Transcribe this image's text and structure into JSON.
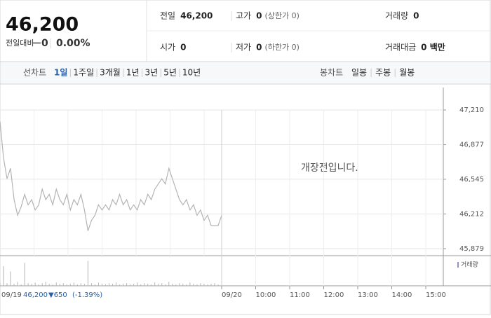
{
  "quote": {
    "price": "46,200",
    "change_label": "전일대비",
    "change": "0",
    "rate": "0.00%"
  },
  "stats": [
    {
      "label": "전일",
      "value": "46,200"
    },
    {
      "label": "고가",
      "value": "0",
      "note": "(상한가 0)"
    },
    {
      "label": "거래량",
      "value": "0"
    },
    {
      "label": "시가",
      "value": "0"
    },
    {
      "label": "저가",
      "value": "0",
      "note": "(하한가 0)"
    },
    {
      "label": "거래대금",
      "value": "0 백만"
    }
  ],
  "tabs": {
    "line_label": "선차트",
    "periods": [
      "1일",
      "1주일",
      "3개월",
      "1년",
      "3년",
      "5년",
      "10년"
    ],
    "candle_label": "봉차트",
    "candles": [
      "일봉",
      "주봉",
      "월봉"
    ]
  },
  "chart": {
    "type": "line",
    "message": "개장전입니다.",
    "color": "#b4b4b4",
    "values": [
      47100,
      46750,
      46550,
      46650,
      46350,
      46200,
      46280,
      46400,
      46300,
      46350,
      46250,
      46300,
      46450,
      46350,
      46400,
      46300,
      46450,
      46350,
      46300,
      46400,
      46250,
      46350,
      46300,
      46400,
      46250,
      46050,
      46150,
      46200,
      46300,
      46250,
      46300,
      46250,
      46350,
      46300,
      46400,
      46300,
      46350,
      46250,
      46300,
      46250,
      46350,
      46300,
      46400,
      46350,
      46450,
      46500,
      46550,
      46500,
      46650,
      46550,
      46450,
      46350,
      46300,
      46350,
      46250,
      46300,
      46200,
      46250,
      46150,
      46200,
      46100,
      46100,
      46100,
      46200
    ],
    "ylim": [
      45812,
      47425
    ],
    "yticks": [
      {
        "value": 47210,
        "label": "47,210"
      },
      {
        "value": 46877,
        "label": "46,877"
      },
      {
        "value": 46545,
        "label": "46,545"
      },
      {
        "value": 46212,
        "label": "46,212"
      },
      {
        "value": 45879,
        "label": "45,879"
      }
    ],
    "volume": {
      "name": "거래량",
      "color": "#b4b4b4",
      "ylim": [
        0,
        45
      ],
      "values": [
        5,
        30,
        4,
        22,
        3,
        6,
        2,
        35,
        4,
        3,
        5,
        2,
        4,
        6,
        3,
        2,
        5,
        3,
        4,
        2,
        3,
        5,
        2,
        4,
        3,
        38,
        4,
        2,
        5,
        3,
        2,
        4,
        3,
        5,
        2,
        3,
        4,
        2,
        3,
        5,
        2,
        4,
        3,
        2,
        5,
        3,
        4,
        2,
        6,
        3,
        2,
        4,
        3,
        2,
        5,
        3,
        2,
        4,
        3,
        2,
        3,
        4,
        2,
        20
      ]
    },
    "xticks": [
      "09/20",
      "10:00",
      "11:00",
      "12:00",
      "13:00",
      "14:00",
      "15:00"
    ],
    "summary": {
      "date": "09/19",
      "close": "46,200",
      "change": "▼650",
      "rate": "(-1.39%)"
    }
  }
}
